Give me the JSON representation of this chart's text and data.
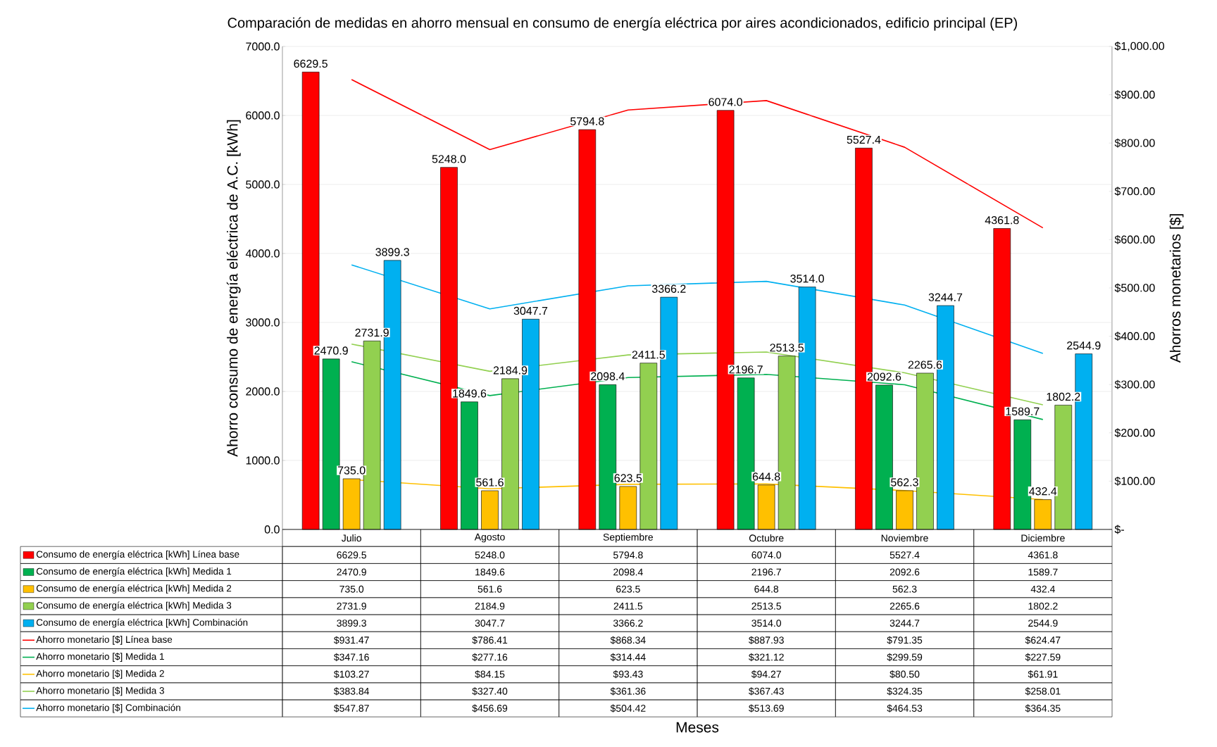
{
  "chart_data": {
    "type": "bar",
    "title": "Comparación de medidas en ahorro mensual en consumo de energía eléctrica por aires acondicionados, edificio principal (EP)",
    "annotations": [
      "Meses"
    ],
    "ylabel": "Ahorro consumo de energía eléctrica de A.C. [kWh]",
    "y2label": "Ahorros monetarios [$]",
    "categories": [
      "Julio",
      "Agosto",
      "Septiembre",
      "Octubre",
      "Noviembre",
      "Diciembre"
    ],
    "series": [
      {
        "name": "Consumo de energía eléctrica [kWh] Línea base",
        "color": "#ff0000",
        "values": [
          6629.5,
          5248.0,
          5794.8,
          6074.0,
          5527.4,
          4361.8
        ],
        "value_labels": [
          "6629.5",
          "5248.0",
          "5794.8",
          "6074.0",
          "5527.4",
          "4361.8"
        ]
      },
      {
        "name": "Consumo de energía eléctrica [kWh] Medida 1",
        "color": "#00b050",
        "values": [
          2470.9,
          1849.6,
          2098.4,
          2196.7,
          2092.6,
          1589.7
        ],
        "value_labels": [
          "2470.9",
          "1849.6",
          "2098.4",
          "2196.7",
          "2092.6",
          "1589.7"
        ]
      },
      {
        "name": "Consumo de energía eléctrica [kWh] Medida 2",
        "color": "#ffc000",
        "values": [
          735.0,
          561.6,
          623.5,
          644.8,
          562.3,
          432.4
        ],
        "value_labels": [
          "735.0",
          "561.6",
          "623.5",
          "644.8",
          "562.3",
          "432.4"
        ]
      },
      {
        "name": "Consumo de energía eléctrica [kWh] Medida 3",
        "color": "#92d050",
        "values": [
          2731.9,
          2184.9,
          2411.5,
          2513.5,
          2265.6,
          1802.2
        ],
        "value_labels": [
          "2731.9",
          "2184.9",
          "2411.5",
          "2513.5",
          "2265.6",
          "1802.2"
        ]
      },
      {
        "name": "Consumo de energía eléctrica [kWh] Combinación",
        "color": "#00b0f0",
        "values": [
          3899.3,
          3047.7,
          3366.2,
          3514.0,
          3244.7,
          2544.9
        ],
        "value_labels": [
          "3899.3",
          "3047.7",
          "3366.2",
          "3514.0",
          "3244.7",
          "2544.9"
        ]
      },
      {
        "name": "Ahorro monetario [$] Línea base",
        "type": "line",
        "axis": "y2",
        "color": "#ff0000",
        "values": [
          931.47,
          786.41,
          868.34,
          887.93,
          791.35,
          624.47
        ],
        "value_labels": [
          "$931.47",
          "$786.41",
          "$868.34",
          "$887.93",
          "$791.35",
          "$624.47"
        ]
      },
      {
        "name": "Ahorro monetario [$] Medida 1",
        "type": "line",
        "axis": "y2",
        "color": "#00b050",
        "values": [
          347.16,
          277.16,
          314.44,
          321.12,
          299.59,
          227.59
        ],
        "value_labels": [
          "$347.16",
          "$277.16",
          "$314.44",
          "$321.12",
          "$299.59",
          "$227.59"
        ]
      },
      {
        "name": "Ahorro monetario [$] Medida 2",
        "type": "line",
        "axis": "y2",
        "color": "#ffc000",
        "values": [
          103.27,
          84.15,
          93.43,
          94.27,
          80.5,
          61.91
        ],
        "value_labels": [
          "$103.27",
          "$84.15",
          "$93.43",
          "$94.27",
          "$80.50",
          "$61.91"
        ]
      },
      {
        "name": "Ahorro monetario [$] Medida 3",
        "type": "line",
        "axis": "y2",
        "color": "#92d050",
        "values": [
          383.84,
          327.4,
          361.36,
          367.43,
          324.35,
          258.01
        ],
        "value_labels": [
          "$383.84",
          "$327.40",
          "$361.36",
          "$367.43",
          "$324.35",
          "$258.01"
        ]
      },
      {
        "name": "Ahorro monetario [$] Combinación",
        "type": "line",
        "axis": "y2",
        "color": "#00b0f0",
        "values": [
          547.87,
          456.69,
          504.42,
          513.69,
          464.53,
          364.35
        ],
        "value_labels": [
          "$547.87",
          "$456.69",
          "$504.42",
          "$513.69",
          "$464.53",
          "$364.35"
        ]
      }
    ],
    "ylim": [
      0,
      7000
    ],
    "yticks": [
      {
        "value": 0,
        "label": "0.0"
      },
      {
        "value": 1000,
        "label": "1000.0"
      },
      {
        "value": 2000,
        "label": "2000.0"
      },
      {
        "value": 3000,
        "label": "3000.0"
      },
      {
        "value": 4000,
        "label": "4000.0"
      },
      {
        "value": 5000,
        "label": "5000.0"
      },
      {
        "value": 6000,
        "label": "6000.0"
      },
      {
        "value": 7000,
        "label": "7000.0"
      }
    ],
    "y2lim": [
      0,
      1000
    ],
    "y2ticks": [
      {
        "value": 0,
        "label": "$-"
      },
      {
        "value": 100,
        "label": "$100.00"
      },
      {
        "value": 200,
        "label": "$200.00"
      },
      {
        "value": 300,
        "label": "$300.00"
      },
      {
        "value": 400,
        "label": "$400.00"
      },
      {
        "value": 500,
        "label": "$500.00"
      },
      {
        "value": 600,
        "label": "$600.00"
      },
      {
        "value": 700,
        "label": "$700.00"
      },
      {
        "value": 800,
        "label": "$800.00"
      },
      {
        "value": 900,
        "label": "$900.00"
      },
      {
        "value": 1000,
        "label": "$1,000.00"
      }
    ],
    "grid": "y",
    "legend": "bottom"
  }
}
